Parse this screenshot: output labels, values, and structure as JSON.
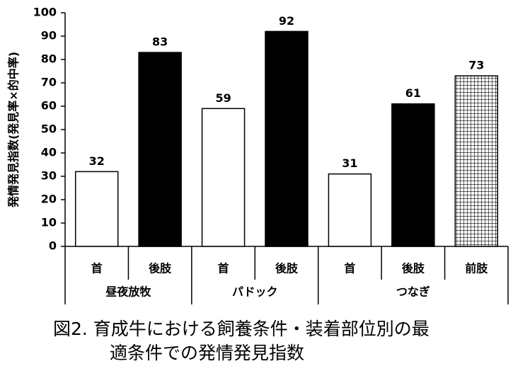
{
  "chart_data": {
    "type": "grouped-bar",
    "y_label": "発情発見指数(発見率×的中率)",
    "ylim": [
      0,
      100
    ],
    "yticks": [
      0,
      10,
      20,
      30,
      40,
      50,
      60,
      70,
      80,
      90,
      100
    ],
    "groups": [
      {
        "name": "昼夜放牧",
        "categories": [
          "首",
          "後肢"
        ],
        "values": [
          32,
          83
        ],
        "colors": [
          "#ffffff",
          "#000000"
        ]
      },
      {
        "name": "パドック",
        "categories": [
          "首",
          "後肢"
        ],
        "values": [
          59,
          92
        ],
        "colors": [
          "#ffffff",
          "#000000"
        ]
      },
      {
        "name": "つなぎ",
        "categories": [
          "首",
          "後肢",
          "前肢"
        ],
        "values": [
          31,
          61,
          73
        ],
        "colors": [
          "#ffffff",
          "#000000",
          "checkered"
        ]
      }
    ],
    "caption": [
      "図2. 育成牛における飼養条件・装着部位別の最",
      "適条件での発情発見指数"
    ]
  }
}
